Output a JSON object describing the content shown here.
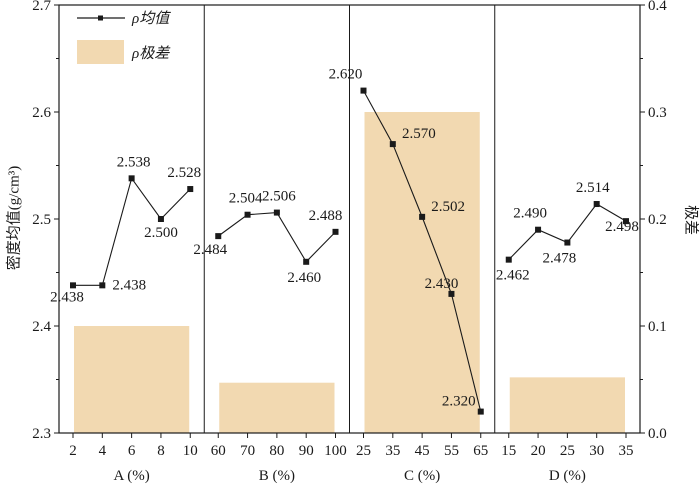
{
  "chart_data": {
    "type": "bar+line",
    "panels": [
      {
        "axis_title": "A (%)",
        "ticks": [
          "2",
          "4",
          "6",
          "8",
          "10"
        ],
        "x": [
          2,
          4,
          6,
          8,
          10
        ],
        "mean": [
          2.438,
          2.438,
          2.538,
          2.5,
          2.528
        ],
        "labels": [
          "2.438",
          "2.438",
          "2.538",
          "2.500",
          "2.528"
        ],
        "range": 0.1
      },
      {
        "axis_title": "B (%)",
        "ticks": [
          "60",
          "70",
          "80",
          "90",
          "100"
        ],
        "x": [
          60,
          70,
          80,
          90,
          100
        ],
        "mean": [
          2.484,
          2.504,
          2.506,
          2.46,
          2.488
        ],
        "labels": [
          "2.484",
          "2.504",
          "2.506",
          "2.460",
          "2.488"
        ],
        "range": 0.047
      },
      {
        "axis_title": "C (%)",
        "ticks": [
          "25",
          "35",
          "45",
          "55",
          "65"
        ],
        "x": [
          25,
          35,
          45,
          55,
          65
        ],
        "mean": [
          2.62,
          2.57,
          2.502,
          2.43,
          2.32
        ],
        "labels": [
          "2.620",
          "2.570",
          "2.502",
          "2.430",
          "2.320"
        ],
        "range": 0.3
      },
      {
        "axis_title": "D (%)",
        "ticks": [
          "15",
          "20",
          "25",
          "30",
          "35"
        ],
        "x": [
          15,
          20,
          25,
          30,
          35
        ],
        "mean": [
          2.462,
          2.49,
          2.478,
          2.514,
          2.498
        ],
        "labels": [
          "2.462",
          "2.490",
          "2.478",
          "2.514",
          "2.498"
        ],
        "range": 0.052
      }
    ],
    "y_left": {
      "title": "密度均值(g/cm³)",
      "ticks": [
        "2.3",
        "2.4",
        "2.5",
        "2.6",
        "2.7"
      ],
      "ylim": [
        2.3,
        2.7
      ]
    },
    "y_right": {
      "title": "极差",
      "ticks": [
        "0.0",
        "0.1",
        "0.2",
        "0.3",
        "0.4"
      ],
      "ylim": [
        0,
        0.4
      ]
    },
    "legend": {
      "position": "top-left",
      "line_label": "ρ均值",
      "bar_label": "ρ极差"
    },
    "colors": {
      "bar": "#f2d9b1",
      "line": "#1a1a1a",
      "marker": "#1a1a1a",
      "frame": "#1a1a1a"
    }
  }
}
